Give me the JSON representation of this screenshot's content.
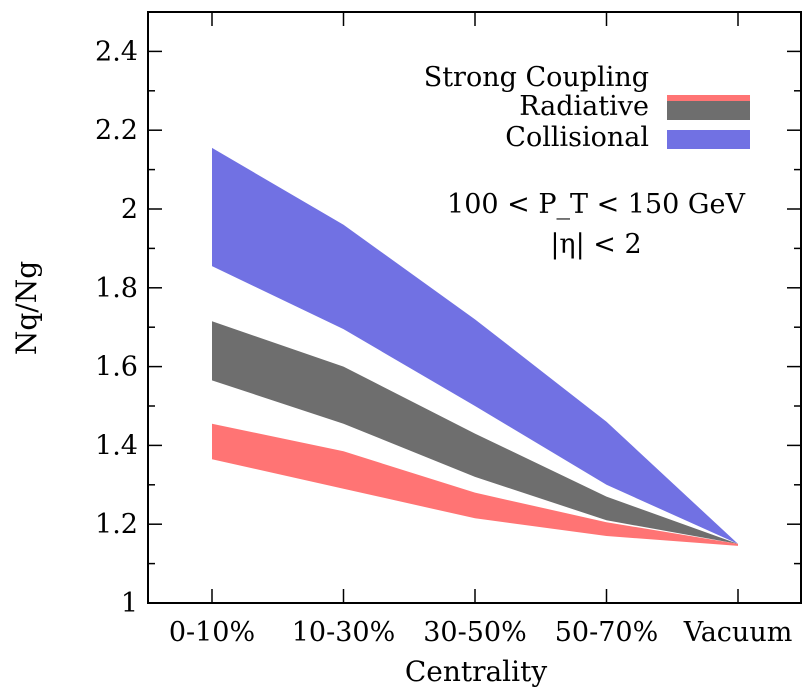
{
  "chart_data": {
    "type": "area",
    "xlabel": "Centrality",
    "ylabel": "Nq/Ng",
    "categories": [
      "0-10%",
      "10-30%",
      "30-50%",
      "50-70%",
      "Vacuum"
    ],
    "ylim": [
      1,
      2.5
    ],
    "yticks": [
      "1",
      "1.2",
      "1.4",
      "1.6",
      "1.8",
      "2",
      "2.2",
      "2.4"
    ],
    "series": [
      {
        "name": "Collisional",
        "color": "#7171e3",
        "lower": [
          1.855,
          1.695,
          1.5,
          1.3,
          1.15
        ],
        "upper": [
          2.155,
          1.96,
          1.72,
          1.46,
          1.15
        ]
      },
      {
        "name": "Radiative",
        "color": "#6e6e6e",
        "lower": [
          1.565,
          1.455,
          1.32,
          1.21,
          1.15
        ],
        "upper": [
          1.715,
          1.6,
          1.43,
          1.27,
          1.15
        ]
      },
      {
        "name": "Strong Coupling",
        "color": "#ff7474",
        "lower": [
          1.365,
          1.29,
          1.215,
          1.17,
          1.145
        ],
        "upper": [
          1.455,
          1.385,
          1.28,
          1.205,
          1.15
        ]
      }
    ],
    "legend": [
      "Strong Coupling",
      "Radiative",
      "Collisional"
    ],
    "legend_position": "top-right",
    "annotations": [
      "100 < P_T < 150 GeV",
      "|η| < 2"
    ],
    "grid": false
  }
}
